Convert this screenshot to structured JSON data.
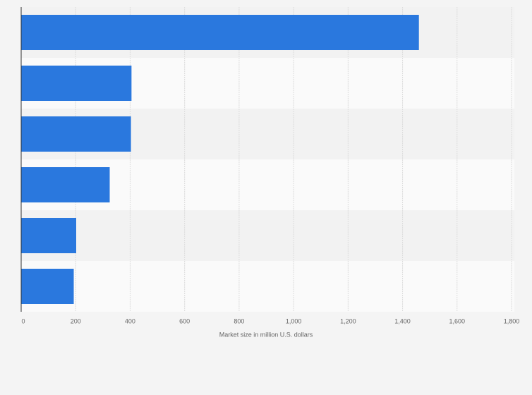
{
  "chart_data": {
    "type": "bar",
    "orientation": "horizontal",
    "x_label": "Market size in million U.S. dollars",
    "categories": [
      null,
      null,
      null,
      null,
      null,
      null
    ],
    "values": [
      1460,
      405,
      403,
      325,
      202,
      193
    ],
    "color": "#2a78de",
    "xlim": [
      0,
      1800
    ],
    "xticks": [
      0,
      200,
      400,
      600,
      800,
      {
        "value": 1000,
        "label": "1,000"
      },
      {
        "value": 1200,
        "label": "1,200"
      },
      {
        "value": 1400,
        "label": "1,400"
      },
      {
        "value": 1600,
        "label": "1,600"
      },
      {
        "value": 1800,
        "label": "1,800"
      }
    ],
    "grid": true
  }
}
